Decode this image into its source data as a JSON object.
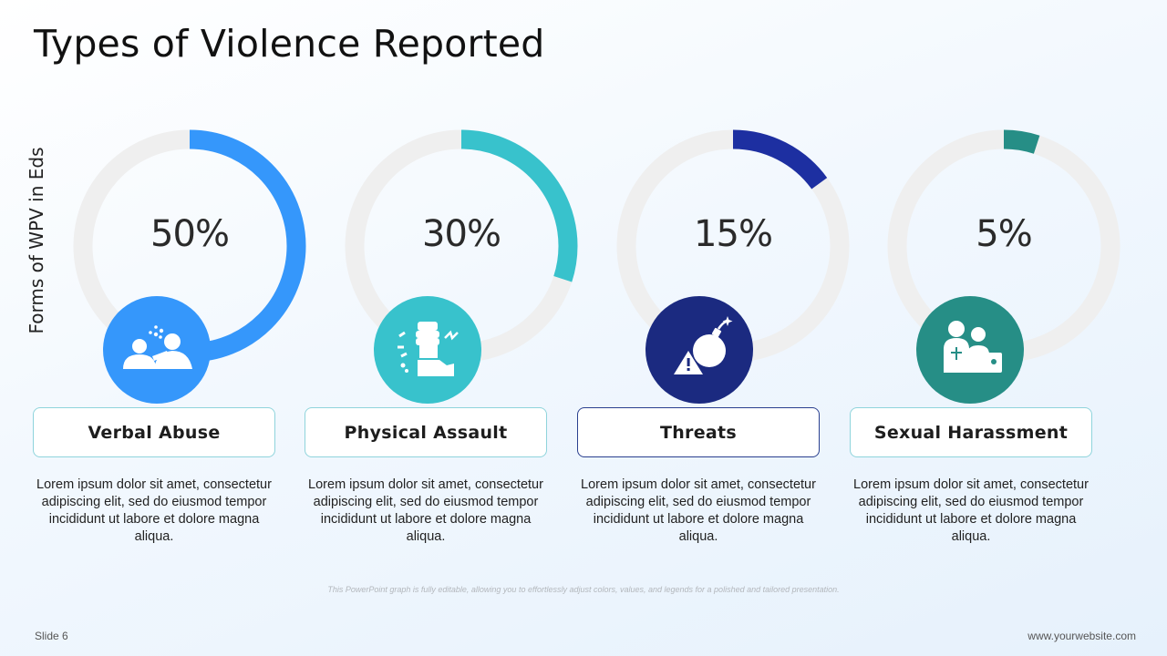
{
  "title": "Types of Violence Reported",
  "footer_note": "This PowerPoint graph is fully editable, allowing you to effortlessly adjust colors, values, and legends for a polished and tailored presentation.",
  "slide_label": "Slide 6",
  "website": "www.yourwebsite.com",
  "chart_data": {
    "type": "pie",
    "variant": "donut-progress",
    "ylabel": "Forms of WPV in Eds",
    "max": 100,
    "track_color": "#efefef",
    "categories": [
      "Verbal Abuse",
      "Physical Assault",
      "Threats",
      "Sexual Harassment"
    ],
    "values": [
      50,
      30,
      15,
      5
    ],
    "value_labels": [
      "50%",
      "30%",
      "15%",
      "5%"
    ],
    "colors": [
      "#3597fb",
      "#38c2cc",
      "#1d2fa1",
      "#268e86"
    ]
  },
  "items": [
    {
      "label": "Verbal Abuse",
      "icon": "verbal-abuse-icon",
      "icon_color": "#3597fb",
      "border_color": "#8fd4dc",
      "description": "Lorem ipsum dolor sit amet, consectetur adipiscing elit, sed do eiusmod tempor incididunt ut labore et dolore magna aliqua."
    },
    {
      "label": "Physical Assault",
      "icon": "fist-icon",
      "icon_color": "#38c2cc",
      "border_color": "#8fd4dc",
      "description": "Lorem ipsum dolor sit amet, consectetur adipiscing elit, sed do eiusmod tempor incididunt ut labore et dolore magna aliqua."
    },
    {
      "label": "Threats",
      "icon": "bomb-warning-icon",
      "icon_color": "#1b2a80",
      "border_color": "#2a3f8f",
      "description": "Lorem ipsum dolor sit amet, consectetur adipiscing elit, sed do eiusmod tempor incididunt ut labore et dolore magna aliqua."
    },
    {
      "label": "Sexual Harassment",
      "icon": "harassment-icon",
      "icon_color": "#268e86",
      "border_color": "#8fd4dc",
      "description": "Lorem ipsum dolor sit amet, consectetur adipiscing elit, sed do eiusmod tempor incididunt ut labore et dolore magna aliqua."
    }
  ]
}
